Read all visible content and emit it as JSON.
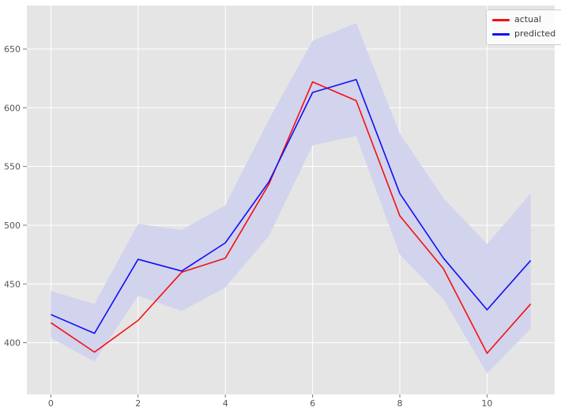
{
  "figure": {
    "background": "#ffffff"
  },
  "chart_data": {
    "type": "line",
    "title": "",
    "xlabel": "",
    "ylabel": "",
    "x": [
      0,
      1,
      2,
      3,
      4,
      5,
      6,
      7,
      8,
      9,
      10,
      11
    ],
    "series": [
      {
        "name": "actual",
        "color": "#f50f0f",
        "values": [
          417,
          392,
          419,
          460,
          472,
          535,
          622,
          606,
          508,
          463,
          391,
          433
        ]
      },
      {
        "name": "predicted",
        "color": "#0f0ff5",
        "values": [
          424,
          408,
          471,
          461,
          485,
          537,
          613,
          624,
          527,
          472,
          428,
          470
        ]
      }
    ],
    "confidence_band": {
      "attached_to": "predicted",
      "fill": "#d2d3ec",
      "upper": [
        444,
        433,
        501,
        496,
        517,
        590,
        657,
        672,
        578,
        523,
        484,
        527
      ],
      "lower": [
        404,
        384,
        440,
        427,
        447,
        491,
        568,
        576,
        475,
        437,
        374,
        412
      ]
    },
    "xticks": [
      0,
      2,
      4,
      6,
      8,
      10
    ],
    "yticks": [
      400,
      450,
      500,
      550,
      600,
      650
    ],
    "xlim": [
      -0.55,
      11.55
    ],
    "ylim": [
      356,
      687
    ],
    "grid": true,
    "legend": {
      "position": "upper-right",
      "items": [
        {
          "label": "actual",
          "color": "#f50f0f"
        },
        {
          "label": "predicted",
          "color": "#0f0ff5"
        }
      ]
    },
    "style": {
      "plot_background": "#e5e5e5",
      "grid_color": "#ffffff",
      "tick_text_color": "#555555",
      "tick_mark_color": "#777777",
      "line_width": 1.6,
      "legend_background": "rgba(255,255,255,0.85)",
      "legend_border": "#cccccc",
      "legend_text_color": "#3a3a3a"
    }
  }
}
